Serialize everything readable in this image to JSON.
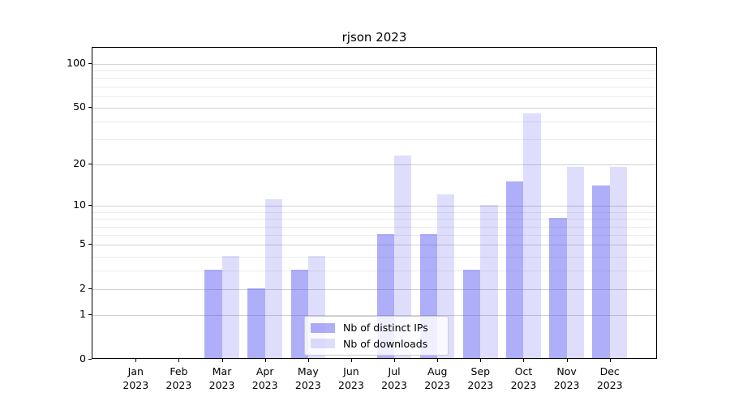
{
  "title": "rjson 2023",
  "chart_data": {
    "type": "bar",
    "title": "rjson 2023",
    "categories": [
      "Jan 2023",
      "Feb 2023",
      "Mar 2023",
      "Apr 2023",
      "May 2023",
      "Jun 2023",
      "Jul 2023",
      "Aug 2023",
      "Sep 2023",
      "Oct 2023",
      "Nov 2023",
      "Dec 2023"
    ],
    "series": [
      {
        "name": "Nb of distinct IPs",
        "color": "rgba(62,62,240,0.42)",
        "values": [
          0,
          0,
          3,
          2,
          3,
          0,
          6,
          6,
          3,
          15,
          8,
          14
        ]
      },
      {
        "name": "Nb of downloads",
        "color": "rgba(62,62,240,0.17)",
        "values": [
          0,
          0,
          4,
          11,
          4,
          0,
          23,
          12,
          10,
          45,
          19,
          19
        ]
      }
    ],
    "xlabel": "",
    "ylabel": "",
    "yscale": "log1p",
    "ylim": [
      0,
      130
    ],
    "yticks": [
      0,
      1,
      2,
      5,
      10,
      20,
      50,
      100
    ],
    "minor_yticks": [
      3,
      4,
      6,
      7,
      8,
      9,
      30,
      40,
      60,
      70,
      80,
      90
    ],
    "grid": true,
    "legend_position": "lower center"
  }
}
